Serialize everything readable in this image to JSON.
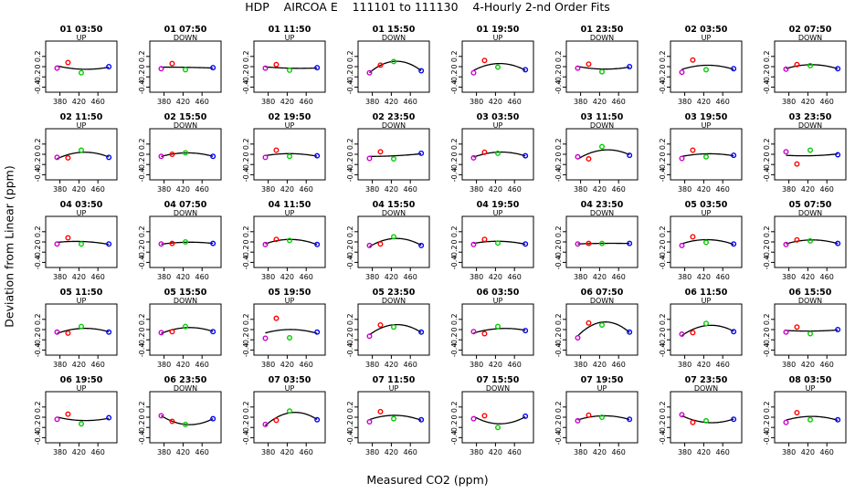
{
  "chart_data": {
    "type": "scatter",
    "title": "HDP    AIRCOA E    111101 to 111130    4-Hourly 2-nd Order Fits",
    "xlabel": "Measured CO2 (ppm)",
    "ylabel": "Deviation from Linear (ppm)",
    "xlim": [
      350,
      500
    ],
    "ylim": [
      -0.5,
      0.5
    ],
    "xticks": [
      380,
      420,
      460
    ],
    "yticks": [
      -0.4,
      -0.2,
      0,
      0.2
    ],
    "ytick_labels": [
      "-0.4",
      "-0.2",
      "0",
      "0.2"
    ],
    "point_x": [
      374,
      397,
      425,
      483
    ],
    "point_colors": [
      "#cc00cc",
      "#ff0000",
      "#00cc00",
      "#0000ff"
    ],
    "panels": [
      {
        "label": "01 03:50",
        "dir": "UP",
        "y": [
          -0.03,
          0.08,
          -0.12,
          0.0
        ]
      },
      {
        "label": "01 07:50",
        "dir": "DOWN",
        "y": [
          -0.04,
          0.06,
          -0.06,
          -0.02
        ]
      },
      {
        "label": "01 11:50",
        "dir": "UP",
        "y": [
          -0.03,
          0.04,
          -0.07,
          -0.02
        ]
      },
      {
        "label": "01 15:50",
        "dir": "DOWN",
        "y": [
          -0.12,
          0.03,
          0.1,
          -0.08
        ]
      },
      {
        "label": "01 19:50",
        "dir": "UP",
        "y": [
          -0.12,
          0.12,
          -0.01,
          -0.06
        ]
      },
      {
        "label": "01 23:50",
        "dir": "DOWN",
        "y": [
          -0.03,
          0.05,
          -0.1,
          0.0
        ]
      },
      {
        "label": "02 03:50",
        "dir": "UP",
        "y": [
          -0.11,
          0.13,
          -0.06,
          -0.04
        ]
      },
      {
        "label": "02 07:50",
        "dir": "DOWN",
        "y": [
          -0.05,
          0.04,
          0.02,
          -0.04
        ]
      },
      {
        "label": "02 11:50",
        "dir": "UP",
        "y": [
          -0.06,
          -0.07,
          0.08,
          -0.06
        ]
      },
      {
        "label": "02 15:50",
        "dir": "DOWN",
        "y": [
          -0.04,
          0.0,
          0.03,
          -0.04
        ]
      },
      {
        "label": "02 19:50",
        "dir": "UP",
        "y": [
          -0.06,
          0.08,
          -0.04,
          -0.03
        ]
      },
      {
        "label": "02 23:50",
        "dir": "DOWN",
        "y": [
          -0.08,
          0.05,
          -0.09,
          0.02
        ]
      },
      {
        "label": "03 03:50",
        "dir": "UP",
        "y": [
          -0.07,
          0.04,
          0.02,
          -0.03
        ]
      },
      {
        "label": "03 11:50",
        "dir": "DOWN",
        "y": [
          -0.05,
          -0.09,
          0.15,
          -0.02
        ]
      },
      {
        "label": "03 19:50",
        "dir": "UP",
        "y": [
          -0.08,
          0.08,
          -0.05,
          -0.02
        ]
      },
      {
        "label": "03 23:50",
        "dir": "DOWN",
        "y": [
          0.05,
          -0.19,
          0.08,
          -0.01
        ]
      },
      {
        "label": "04 03:50",
        "dir": "UP",
        "y": [
          -0.04,
          0.08,
          -0.04,
          -0.04
        ]
      },
      {
        "label": "04 07:50",
        "dir": "DOWN",
        "y": [
          -0.04,
          -0.03,
          0.0,
          -0.03
        ]
      },
      {
        "label": "04 11:50",
        "dir": "UP",
        "y": [
          -0.05,
          0.05,
          0.03,
          -0.05
        ]
      },
      {
        "label": "04 15:50",
        "dir": "DOWN",
        "y": [
          -0.07,
          -0.04,
          0.1,
          -0.07
        ]
      },
      {
        "label": "04 19:50",
        "dir": "UP",
        "y": [
          -0.05,
          0.05,
          -0.02,
          -0.04
        ]
      },
      {
        "label": "04 23:50",
        "dir": "DOWN",
        "y": [
          -0.04,
          -0.03,
          -0.03,
          -0.03
        ]
      },
      {
        "label": "05 03:50",
        "dir": "UP",
        "y": [
          -0.07,
          0.1,
          -0.01,
          -0.04
        ]
      },
      {
        "label": "05 07:50",
        "dir": "DOWN",
        "y": [
          -0.05,
          0.04,
          0.02,
          -0.03
        ]
      },
      {
        "label": "05 11:50",
        "dir": "UP",
        "y": [
          -0.05,
          -0.07,
          0.06,
          -0.05
        ]
      },
      {
        "label": "05 15:50",
        "dir": "DOWN",
        "y": [
          -0.06,
          -0.04,
          0.06,
          -0.04
        ]
      },
      {
        "label": "05 19:50",
        "dir": "UP",
        "y": [
          -0.17,
          0.22,
          -0.16,
          -0.05
        ]
      },
      {
        "label": "05 23:50",
        "dir": "DOWN",
        "y": [
          -0.13,
          0.09,
          0.05,
          -0.05
        ]
      },
      {
        "label": "06 03:50",
        "dir": "UP",
        "y": [
          -0.04,
          -0.08,
          0.06,
          -0.02
        ]
      },
      {
        "label": "06 07:50",
        "dir": "DOWN",
        "y": [
          -0.16,
          0.13,
          0.09,
          -0.05
        ]
      },
      {
        "label": "06 11:50",
        "dir": "UP",
        "y": [
          -0.09,
          -0.06,
          0.12,
          -0.04
        ]
      },
      {
        "label": "06 15:50",
        "dir": "DOWN",
        "y": [
          -0.05,
          0.05,
          -0.08,
          0.0
        ]
      },
      {
        "label": "06 19:50",
        "dir": "UP",
        "y": [
          -0.04,
          0.06,
          -0.13,
          -0.01
        ]
      },
      {
        "label": "06 23:50",
        "dir": "DOWN",
        "y": [
          0.03,
          -0.08,
          -0.14,
          -0.03
        ]
      },
      {
        "label": "07 03:50",
        "dir": "UP",
        "y": [
          -0.14,
          -0.06,
          0.12,
          -0.05
        ]
      },
      {
        "label": "07 11:50",
        "dir": "UP",
        "y": [
          -0.09,
          0.11,
          -0.03,
          -0.05
        ]
      },
      {
        "label": "07 15:50",
        "dir": "DOWN",
        "y": [
          -0.03,
          0.03,
          -0.2,
          0.02
        ]
      },
      {
        "label": "07 19:50",
        "dir": "UP",
        "y": [
          -0.07,
          0.04,
          0.0,
          -0.04
        ]
      },
      {
        "label": "07 23:50",
        "dir": "DOWN",
        "y": [
          0.05,
          -0.1,
          -0.07,
          -0.04
        ]
      },
      {
        "label": "08 03:50",
        "dir": "UP",
        "y": [
          -0.1,
          0.09,
          -0.05,
          -0.05
        ]
      }
    ]
  }
}
